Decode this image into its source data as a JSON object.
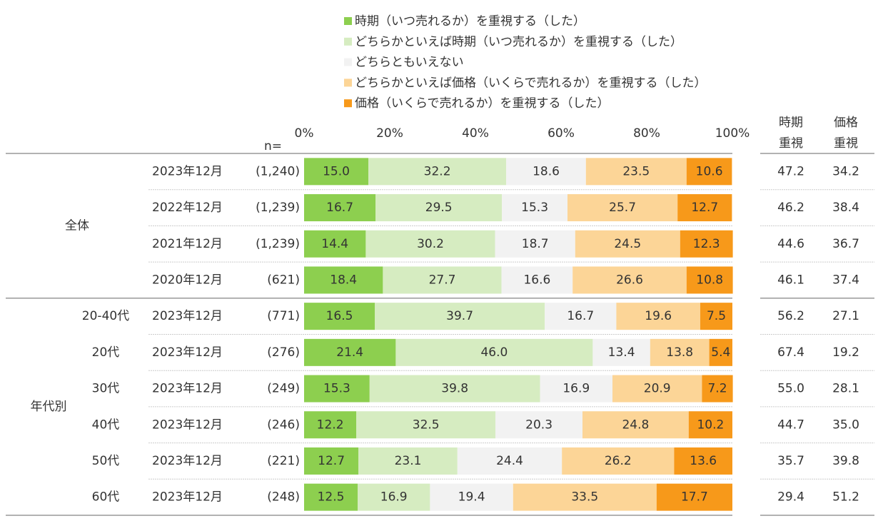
{
  "chart_data": {
    "type": "bar",
    "orientation": "horizontal",
    "stacked": true,
    "legend": "top",
    "n_label": "n=",
    "xlim": [
      0,
      100
    ],
    "xticks": [
      {
        "value": 0,
        "label": "0%"
      },
      {
        "value": 20,
        "label": "20%"
      },
      {
        "value": 40,
        "label": "40%"
      },
      {
        "value": 60,
        "label": "60%"
      },
      {
        "value": 80,
        "label": "80%"
      },
      {
        "value": 100,
        "label": "100%"
      }
    ],
    "row_groups": [
      "全体",
      "全体",
      "全体",
      "全体",
      "年代別",
      "年代別",
      "年代別",
      "年代別",
      "年代別",
      "年代別"
    ],
    "subgroups": [
      null,
      null,
      null,
      null,
      "20-40代",
      "20代",
      "30代",
      "40代",
      "50代",
      "60代"
    ],
    "categories": [
      "2023年12月",
      "2022年12月",
      "2021年12月",
      "2020年12月",
      "2023年12月",
      "2023年12月",
      "2023年12月",
      "2023年12月",
      "2023年12月",
      "2023年12月"
    ],
    "sample_sizes": [
      "(1,240)",
      "(1,239)",
      "(1,239)",
      "(621)",
      "(771)",
      "(276)",
      "(249)",
      "(246)",
      "(221)",
      "(248)"
    ],
    "series": [
      {
        "name": "時期（いつ売れるか）を重視する（した）",
        "color": "#8dcf4f",
        "values": [
          15.0,
          16.7,
          14.4,
          18.4,
          16.5,
          21.4,
          15.3,
          12.2,
          12.7,
          12.5
        ],
        "value_labels": [
          "15.0",
          "16.7",
          "14.4",
          "18.4",
          "16.5",
          "21.4",
          "15.3",
          "12.2",
          "12.7",
          "12.5"
        ]
      },
      {
        "name": "どちらかといえば時期（いつ売れるか）を重視する（した）",
        "color": "#d6ecc1",
        "values": [
          32.2,
          29.5,
          30.2,
          27.7,
          39.7,
          46.0,
          39.8,
          32.5,
          23.1,
          16.9
        ],
        "value_labels": [
          "32.2",
          "29.5",
          "30.2",
          "27.7",
          "39.7",
          "46.0",
          "39.8",
          "32.5",
          "23.1",
          "16.9"
        ]
      },
      {
        "name": "どちらともいえない",
        "color": "#f2f2f2",
        "values": [
          18.6,
          15.3,
          18.7,
          16.6,
          16.7,
          13.4,
          16.9,
          20.3,
          24.4,
          19.4
        ],
        "value_labels": [
          "18.6",
          "15.3",
          "18.7",
          "16.6",
          "16.7",
          "13.4",
          "16.9",
          "20.3",
          "24.4",
          "19.4"
        ]
      },
      {
        "name": "どちらかといえば価格（いくらで売れるか）を重視する（した）",
        "color": "#fcd597",
        "values": [
          23.5,
          25.7,
          24.5,
          26.6,
          19.6,
          13.8,
          20.9,
          24.8,
          26.2,
          33.5
        ],
        "value_labels": [
          "23.5",
          "25.7",
          "24.5",
          "26.6",
          "19.6",
          "13.8",
          "20.9",
          "24.8",
          "26.2",
          "33.5"
        ]
      },
      {
        "name": "価格（いくらで売れるか）を重視する（した）",
        "color": "#f7991a",
        "values": [
          10.6,
          12.7,
          12.3,
          10.8,
          7.5,
          5.4,
          7.2,
          10.2,
          13.6,
          17.7
        ],
        "value_labels": [
          "10.6",
          "12.7",
          "12.3",
          "10.8",
          "7.5",
          "5.4",
          "7.2",
          "10.2",
          "13.6",
          "17.7"
        ]
      }
    ],
    "summary": [
      {
        "header": [
          "時期",
          "重視"
        ],
        "values": [
          "47.2",
          "46.2",
          "44.6",
          "46.1",
          "56.2",
          "67.4",
          "55.0",
          "44.7",
          "35.7",
          "29.4"
        ]
      },
      {
        "header": [
          "価格",
          "重視"
        ],
        "values": [
          "34.2",
          "38.4",
          "36.7",
          "37.4",
          "27.1",
          "19.2",
          "28.1",
          "35.0",
          "39.8",
          "51.2"
        ]
      }
    ]
  }
}
